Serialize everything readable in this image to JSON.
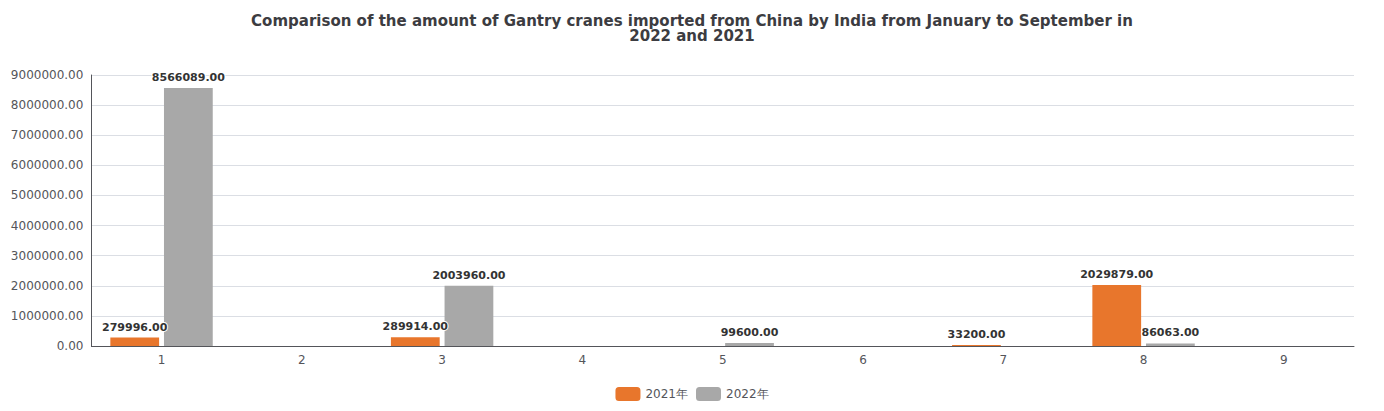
{
  "chart_data": {
    "type": "bar",
    "title": "Comparison of the amount of Gantry cranes imported from China by India from January to September in\n2022 and 2021",
    "categories": [
      1,
      2,
      3,
      4,
      5,
      6,
      7,
      8,
      9
    ],
    "series": [
      {
        "name": "2021年",
        "color": "#E8762C",
        "values": [
          279996.0,
          0,
          289914.0,
          0,
          0,
          0,
          33200.0,
          2029879.0,
          0
        ],
        "value_labels": [
          "279996.00",
          null,
          "289914.00",
          null,
          null,
          null,
          "33200.00",
          "2029879.00",
          null
        ]
      },
      {
        "name": "2022年",
        "color": "#A8A8A8",
        "values": [
          8566089.0,
          0,
          2003960.0,
          0,
          99600.0,
          0,
          0,
          86063.0,
          0
        ],
        "value_labels": [
          "8566089.00",
          null,
          "2003960.00",
          null,
          "99600.00",
          null,
          null,
          "86063.00",
          null
        ]
      }
    ],
    "ylim": [
      0,
      9000000
    ],
    "yticks": [
      {
        "value": 0,
        "label": "0.00"
      },
      {
        "value": 1000000,
        "label": "1000000.00"
      },
      {
        "value": 2000000,
        "label": "2000000.00"
      },
      {
        "value": 3000000,
        "label": "3000000.00"
      },
      {
        "value": 4000000,
        "label": "4000000.00"
      },
      {
        "value": 5000000,
        "label": "5000000.00"
      },
      {
        "value": 6000000,
        "label": "6000000.00"
      },
      {
        "value": 7000000,
        "label": "7000000.00"
      },
      {
        "value": 8000000,
        "label": "8000000.00"
      },
      {
        "value": 9000000,
        "label": "9000000.00"
      }
    ],
    "grid": true,
    "legend": "bottom",
    "data_labels": true
  }
}
